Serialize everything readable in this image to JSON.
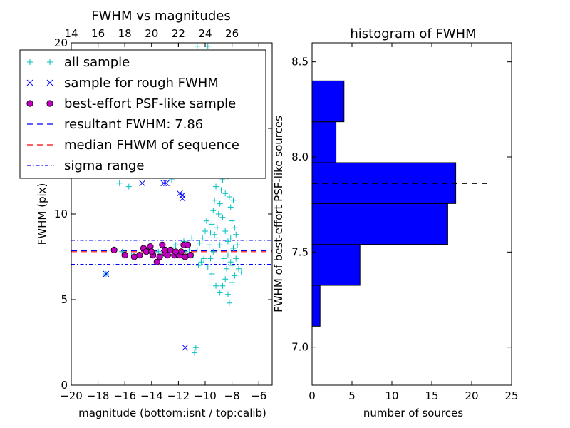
{
  "chart_data": [
    {
      "type": "scatter",
      "title": "FWHM vs magnitudes",
      "xlabel": "magnitude (bottom:isnt / top:calib)",
      "ylabel": "FWHM (pix)",
      "xlim": [
        -20,
        -5
      ],
      "ylim": [
        0,
        20
      ],
      "xticks": [
        -20,
        -18,
        -16,
        -14,
        -12,
        -10,
        -8,
        -6
      ],
      "xtick_labels": [
        "−20",
        "−18",
        "−16",
        "−14",
        "−12",
        "−10",
        "−8",
        "−6"
      ],
      "yticks": [
        0,
        5,
        10,
        15,
        20
      ],
      "ytick_labels": [
        "0",
        "5",
        "10",
        "15",
        "20"
      ],
      "top_axis": {
        "label": "calib",
        "ticks": [
          14,
          16,
          18,
          20,
          22,
          24,
          26
        ],
        "tick_labels": [
          "14",
          "16",
          "18",
          "20",
          "22",
          "24",
          "26"
        ],
        "offset_from_bottom": 34
      },
      "legend": {
        "placement": "upper-left",
        "entries": [
          {
            "label": "all sample",
            "marker": "plus",
            "color": "#00bfbf"
          },
          {
            "label": "sample for rough FWHM",
            "marker": "x",
            "color": "#0000ff"
          },
          {
            "label": "best-effort PSF-like sample",
            "marker": "circle",
            "color": "#bf00bf"
          },
          {
            "label": "resultant FWHM: 7.86",
            "marker": "dash",
            "color": "#0000ff"
          },
          {
            "label": "median FHWM of sequence",
            "marker": "dash",
            "color": "#ff0000"
          },
          {
            "label": "sigma range",
            "marker": "dashdot",
            "color": "#0000ff"
          }
        ]
      },
      "series": [
        {
          "name": "all sample",
          "marker": "plus",
          "color": "#00bfbf",
          "points": [
            [
              -18.9,
              15.0
            ],
            [
              -17.0,
              15.6
            ],
            [
              -16.4,
              11.8
            ],
            [
              -15.7,
              11.6
            ],
            [
              -14.7,
              14.6
            ],
            [
              -13.8,
              14.2
            ],
            [
              -12.5,
              12.0
            ],
            [
              -11.0,
              15.4
            ],
            [
              -10.6,
              19.8
            ],
            [
              -9.8,
              19.8
            ],
            [
              -17.4,
              6.5
            ],
            [
              -16.2,
              7.8
            ],
            [
              -15.5,
              7.6
            ],
            [
              -14.9,
              7.6
            ],
            [
              -14.5,
              7.9
            ],
            [
              -13.9,
              7.7
            ],
            [
              -13.5,
              7.8
            ],
            [
              -13.1,
              7.7
            ],
            [
              -12.8,
              7.6
            ],
            [
              -12.4,
              7.9
            ],
            [
              -11.9,
              7.7
            ],
            [
              -11.5,
              7.8
            ],
            [
              -11.2,
              7.9
            ],
            [
              -10.9,
              7.6
            ],
            [
              -10.6,
              7.9
            ],
            [
              -10.3,
              7.2
            ],
            [
              -10.1,
              7.4
            ],
            [
              -9.8,
              6.9
            ],
            [
              -9.5,
              6.5
            ],
            [
              -9.2,
              5.8
            ],
            [
              -8.9,
              5.4
            ],
            [
              -8.7,
              5.8
            ],
            [
              -8.5,
              6.2
            ],
            [
              -8.3,
              5.3
            ],
            [
              -8.2,
              4.8
            ],
            [
              -8.0,
              6.0
            ],
            [
              -7.8,
              6.4
            ],
            [
              -7.5,
              6.8
            ],
            [
              -7.3,
              6.6
            ],
            [
              -10.7,
              2.2
            ],
            [
              -10.8,
              1.9
            ],
            [
              -10.4,
              8.3
            ],
            [
              -10.2,
              8.6
            ],
            [
              -10.0,
              9.0
            ],
            [
              -9.9,
              9.6
            ],
            [
              -9.7,
              8.2
            ],
            [
              -9.6,
              8.9
            ],
            [
              -9.5,
              9.4
            ],
            [
              -9.4,
              10.2
            ],
            [
              -9.3,
              10.8
            ],
            [
              -9.2,
              11.6
            ],
            [
              -9.1,
              12.4
            ],
            [
              -9.0,
              13.0
            ],
            [
              -8.9,
              13.8
            ],
            [
              -8.8,
              14.5
            ],
            [
              -8.7,
              12.0
            ],
            [
              -8.6,
              12.8
            ],
            [
              -8.5,
              11.2
            ],
            [
              -8.4,
              13.4
            ],
            [
              -8.3,
              12.2
            ],
            [
              -8.2,
              11.0
            ],
            [
              -8.1,
              10.4
            ],
            [
              -8.0,
              9.6
            ],
            [
              -7.9,
              10.8
            ],
            [
              -7.8,
              9.2
            ],
            [
              -7.7,
              8.8
            ],
            [
              -7.6,
              8.2
            ],
            [
              -7.9,
              8.0
            ],
            [
              -8.1,
              8.6
            ],
            [
              -8.3,
              8.4
            ],
            [
              -8.5,
              9.0
            ],
            [
              -8.7,
              9.8
            ],
            [
              -8.9,
              10.6
            ],
            [
              -9.1,
              9.2
            ],
            [
              -9.3,
              8.8
            ],
            [
              -8.6,
              15.2
            ],
            [
              -8.4,
              14.6
            ],
            [
              -8.2,
              13.8
            ],
            [
              -8.0,
              12.6
            ],
            [
              -8.8,
              11.4
            ],
            [
              -9.0,
              10.0
            ],
            [
              -8.3,
              7.6
            ],
            [
              -8.1,
              7.2
            ],
            [
              -8.6,
              7.4
            ],
            [
              -9.4,
              7.8
            ],
            [
              -8.9,
              8.2
            ],
            [
              -9.6,
              7.4
            ],
            [
              -8.4,
              6.8
            ],
            [
              -8.0,
              7.0
            ],
            [
              -7.7,
              7.4
            ],
            [
              -11.6,
              8.4
            ],
            [
              -11.0,
              8.6
            ],
            [
              -10.5,
              7.0
            ],
            [
              -12.2,
              8.2
            ],
            [
              -13.0,
              8.0
            ]
          ]
        },
        {
          "name": "sample for rough FWHM",
          "marker": "x",
          "color": "#0000ff",
          "points": [
            [
              -17.4,
              6.5
            ],
            [
              -14.7,
              11.8
            ],
            [
              -13.1,
              11.8
            ],
            [
              -12.9,
              11.8
            ],
            [
              -11.9,
              11.2
            ],
            [
              -11.7,
              11.1
            ],
            [
              -11.7,
              10.9
            ],
            [
              -11.5,
              2.2
            ]
          ]
        },
        {
          "name": "best-effort PSF-like sample",
          "marker": "circle",
          "color": "#bf00bf",
          "points": [
            [
              -16.8,
              7.9
            ],
            [
              -16.0,
              7.6
            ],
            [
              -15.3,
              7.5
            ],
            [
              -14.9,
              7.6
            ],
            [
              -14.6,
              8.0
            ],
            [
              -14.4,
              7.8
            ],
            [
              -14.1,
              8.1
            ],
            [
              -13.9,
              7.6
            ],
            [
              -13.6,
              7.2
            ],
            [
              -13.4,
              7.5
            ],
            [
              -13.2,
              8.2
            ],
            [
              -13.0,
              7.7
            ],
            [
              -12.8,
              7.6
            ],
            [
              -12.6,
              7.9
            ],
            [
              -12.3,
              7.6
            ],
            [
              -12.1,
              7.7
            ],
            [
              -11.9,
              7.6
            ],
            [
              -11.8,
              7.8
            ],
            [
              -11.6,
              8.2
            ],
            [
              -11.5,
              7.5
            ],
            [
              -11.3,
              8.2
            ],
            [
              -11.1,
              7.6
            ],
            [
              -14.0,
              7.8
            ],
            [
              -13.0,
              7.9
            ],
            [
              -12.2,
              7.8
            ]
          ]
        }
      ],
      "hlines": [
        {
          "name": "resultant FWHM: 7.86",
          "y": 7.86,
          "color": "#0000ff",
          "style": "dashed"
        },
        {
          "name": "median FHWM of sequence",
          "y": 7.8,
          "color": "#ff0000",
          "style": "dashed"
        },
        {
          "name": "sigma range",
          "y": 8.46,
          "color": "#0000ff",
          "style": "dashdot"
        },
        {
          "name": "sigma range",
          "y": 7.06,
          "color": "#0000ff",
          "style": "dashdot"
        }
      ]
    },
    {
      "type": "bar",
      "orientation": "horizontal",
      "title": "histogram of FWHM",
      "xlabel": "number of sources",
      "ylabel": "FWHM of best-effort PSF-like sources",
      "xlim": [
        0,
        25
      ],
      "ylim": [
        6.8,
        8.6
      ],
      "xticks": [
        0,
        5,
        10,
        15,
        20,
        25
      ],
      "xtick_labels": [
        "0",
        "5",
        "10",
        "15",
        "20",
        "25"
      ],
      "yticks": [
        7.0,
        7.5,
        8.0,
        8.5
      ],
      "ytick_labels": [
        "7.0",
        "7.5",
        "8.0",
        "8.5"
      ],
      "color": "#0000ff",
      "bins": [
        {
          "from": 7.11,
          "to": 7.325,
          "count": 1
        },
        {
          "from": 7.325,
          "to": 7.54,
          "count": 6
        },
        {
          "from": 7.54,
          "to": 7.755,
          "count": 17
        },
        {
          "from": 7.755,
          "to": 7.97,
          "count": 18
        },
        {
          "from": 7.97,
          "to": 8.185,
          "count": 3
        },
        {
          "from": 8.185,
          "to": 8.4,
          "count": 4
        }
      ],
      "reference_line": {
        "y": 7.86,
        "color": "#000000",
        "style": "dashed",
        "x_extent": [
          0,
          22
        ]
      }
    }
  ]
}
